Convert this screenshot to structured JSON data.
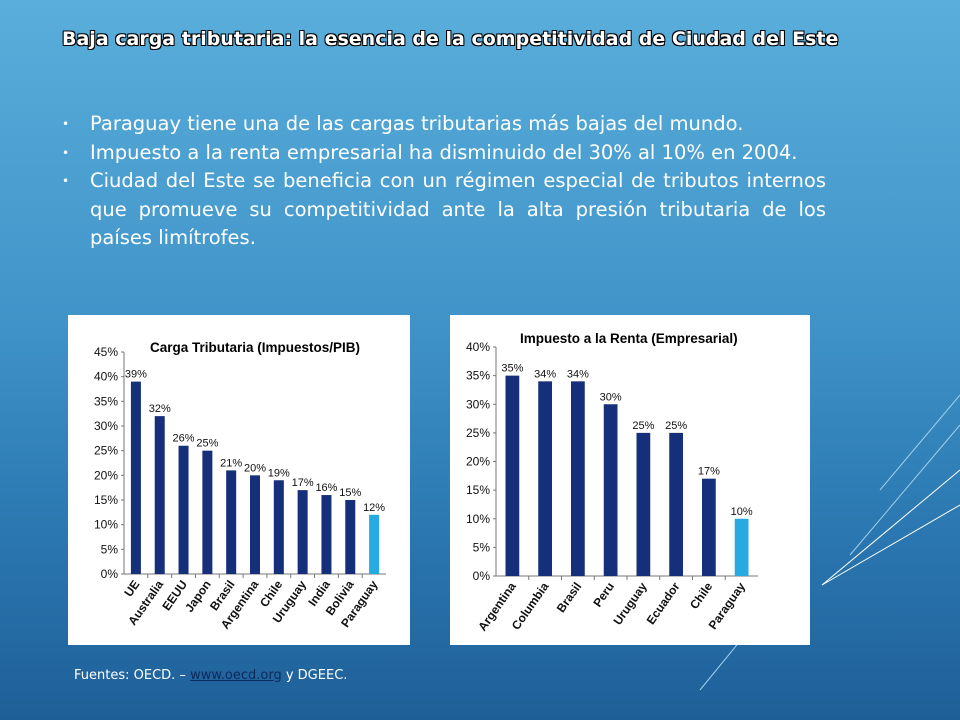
{
  "slide": {
    "title": "Baja carga tributaria: la esencia de la competitividad de Ciudad del Este",
    "bullets": [
      "Paraguay tiene una de las cargas tributarias más bajas del mundo.",
      "Impuesto a la renta empresarial ha disminuido del 30% al 10% en 2004.",
      "Ciudad del Este se beneficia con un régimen especial de tributos internos que promueve su competitividad ante la alta presión tributaria de los países limítrofes."
    ],
    "footer": {
      "prefix": "Fuentes: OECD. – ",
      "link_text": "www.oecd.org",
      "suffix": " y DGEEC."
    }
  },
  "colors": {
    "bar": "#152f7a",
    "highlight": "#27aae1",
    "text": "#ffffff"
  },
  "chart_data": [
    {
      "type": "bar",
      "title": "Carga Tributaria (Impuestos/PIB)",
      "categories": [
        "UE",
        "Australia",
        "EEUU",
        "Japon",
        "Brasil",
        "Argentina",
        "Chile",
        "Uruguay",
        "India",
        "Bolivia",
        "Paraguay"
      ],
      "values": [
        39,
        32,
        26,
        25,
        21,
        20,
        19,
        17,
        16,
        15,
        12
      ],
      "value_labels": [
        "39%",
        "32%",
        "26%",
        "25%",
        "21%",
        "20%",
        "19%",
        "17%",
        "16%",
        "15%",
        "12%"
      ],
      "highlight": "Paraguay",
      "ylim": [
        0,
        45
      ],
      "yticks": [
        "0%",
        "5%",
        "10%",
        "15%",
        "20%",
        "25%",
        "30%",
        "35%",
        "40%",
        "45%"
      ],
      "xlabel": "",
      "ylabel": "",
      "grid": false
    },
    {
      "type": "bar",
      "title": "Impuesto a la Renta (Empresarial)",
      "categories": [
        "Argentina",
        "Columbia",
        "Brasil",
        "Peru",
        "Uruguay",
        "Ecuador",
        "Chile",
        "Paraguay"
      ],
      "values": [
        35,
        34,
        34,
        30,
        25,
        25,
        17,
        10
      ],
      "value_labels": [
        "35%",
        "34%",
        "34%",
        "30%",
        "25%",
        "25%",
        "17%",
        "10%"
      ],
      "highlight": "Paraguay",
      "ylim": [
        0,
        40
      ],
      "yticks": [
        "0%",
        "5%",
        "10%",
        "15%",
        "20%",
        "25%",
        "30%",
        "35%",
        "40%"
      ],
      "xlabel": "",
      "ylabel": "",
      "grid": false
    }
  ]
}
